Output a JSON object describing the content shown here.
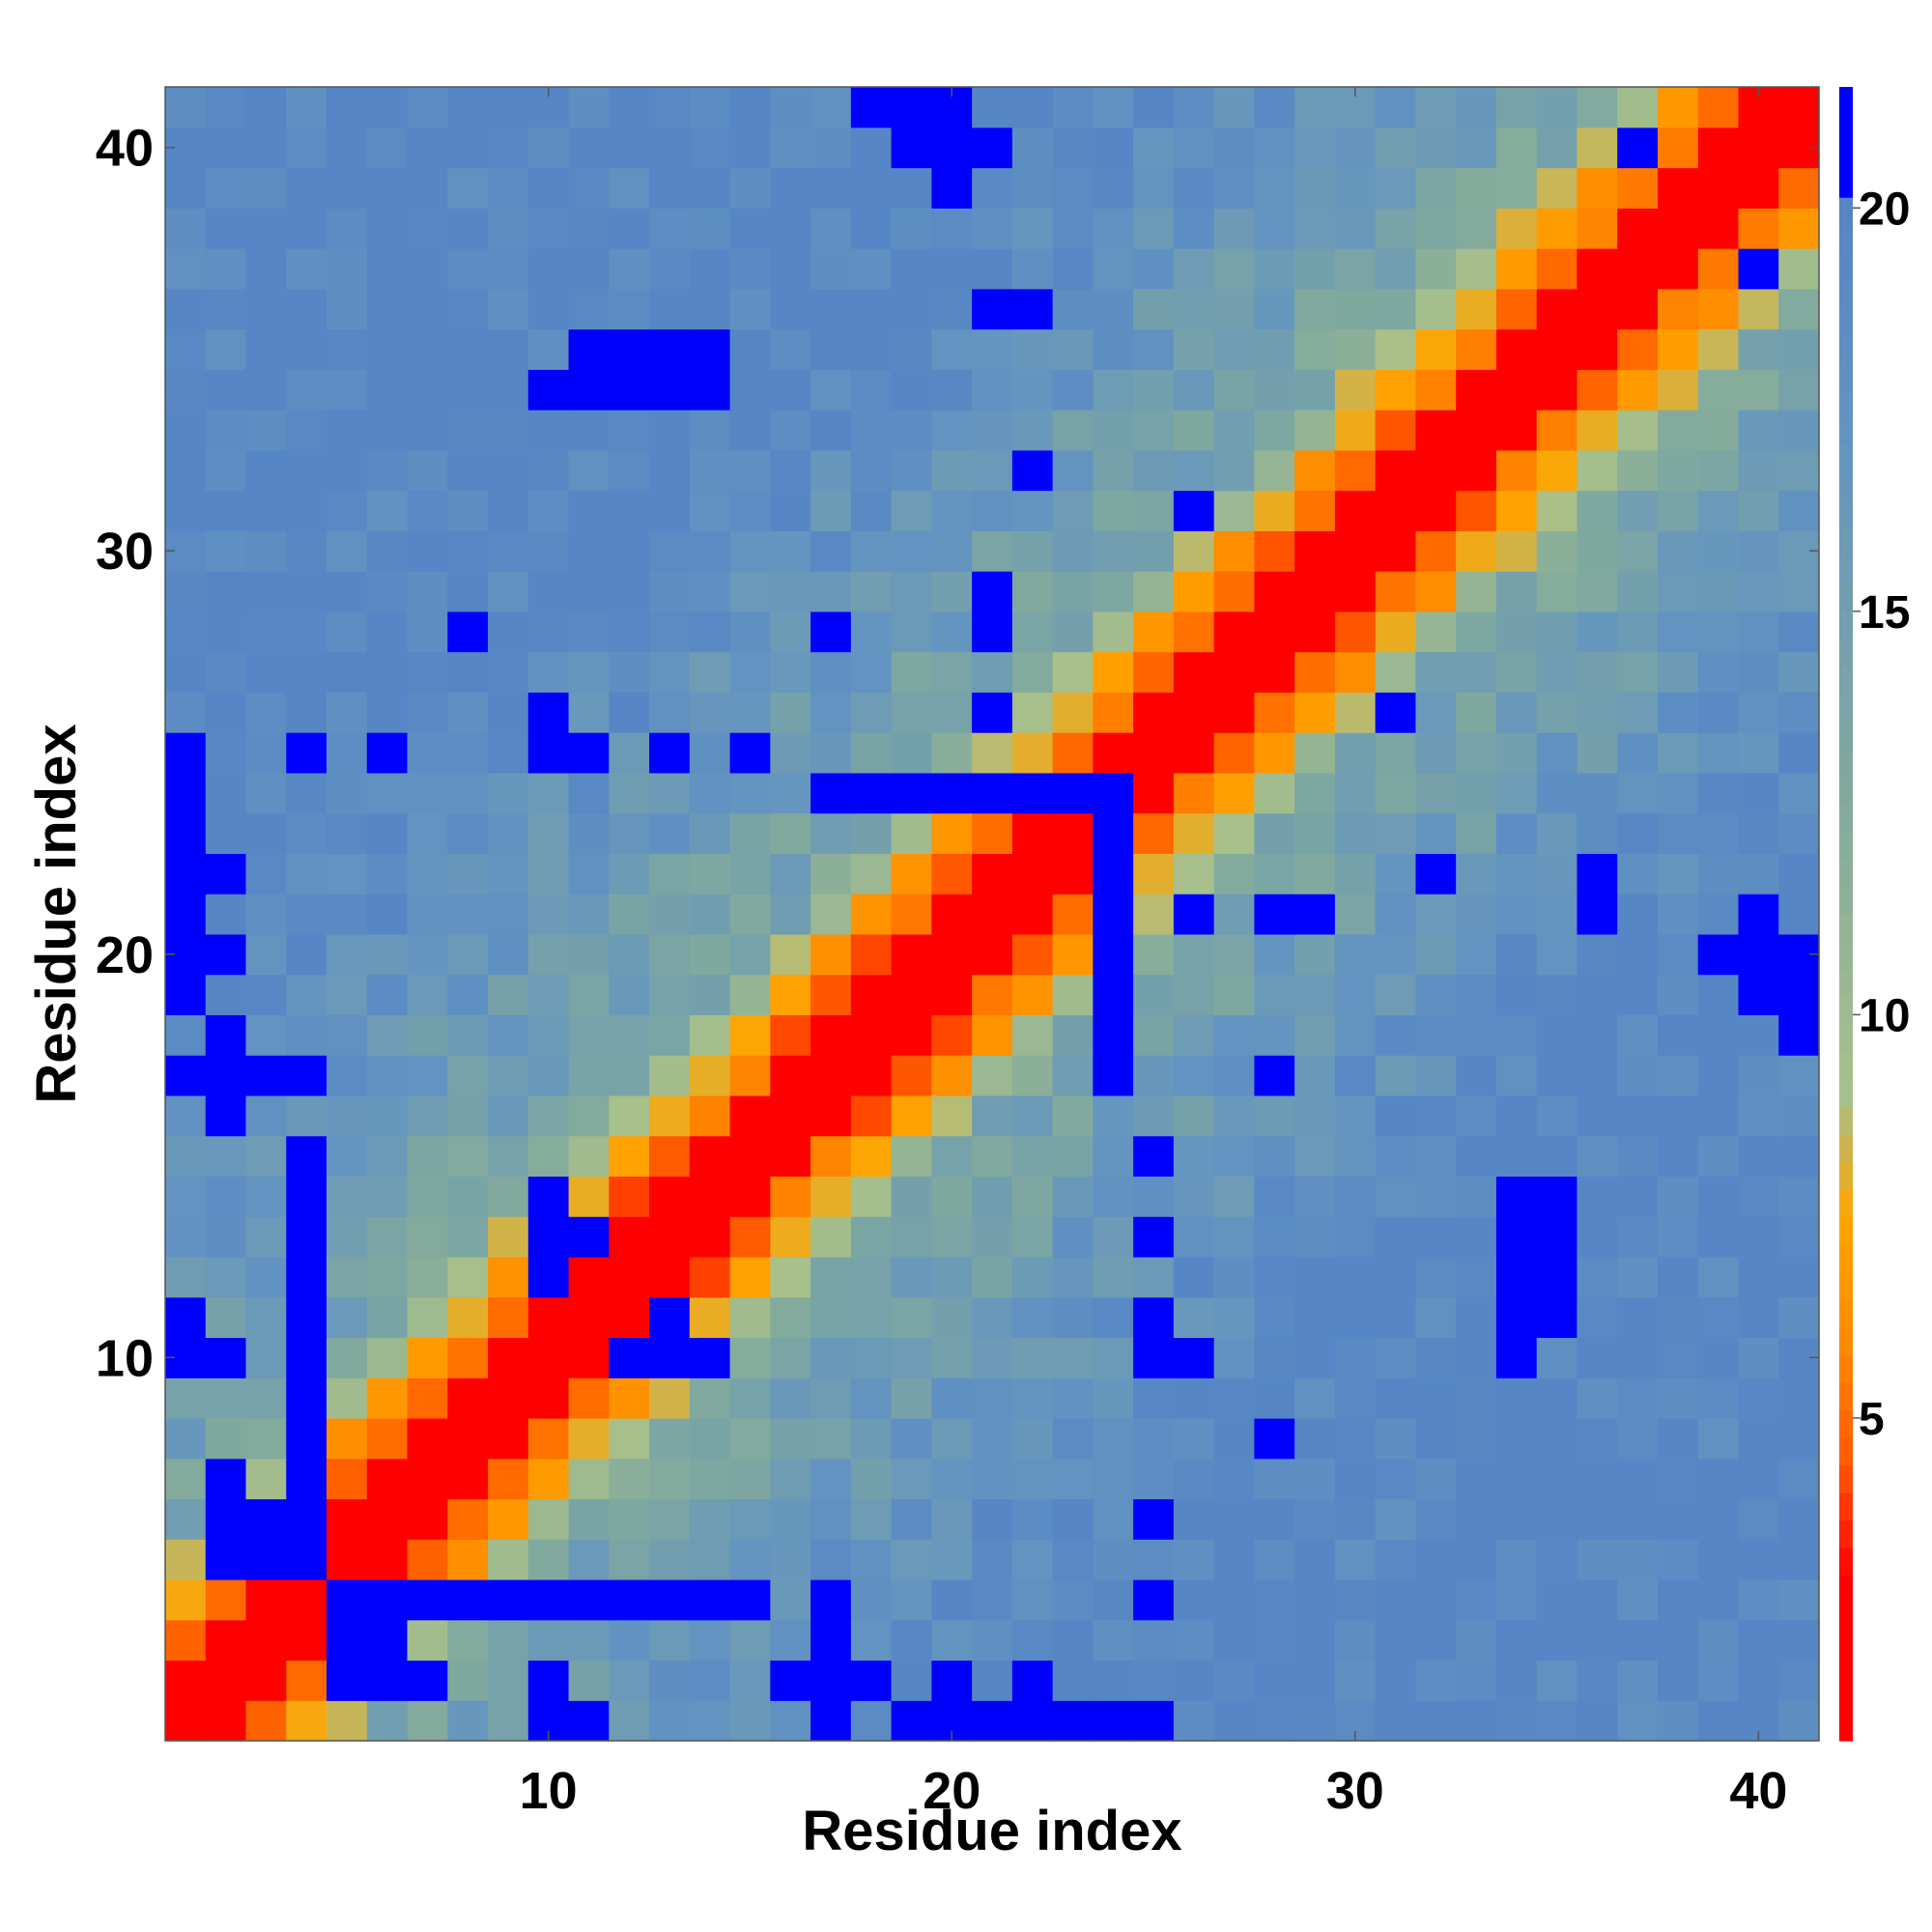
{
  "chart_data": {
    "type": "heatmap",
    "title": "",
    "xlabel": "Residue index",
    "ylabel": "Residue index",
    "n": 41,
    "x_range": [
      1,
      41
    ],
    "y_range": [
      1,
      41
    ],
    "x_ticks": [
      10,
      20,
      30,
      40
    ],
    "y_ticks": [
      10,
      20,
      30,
      40
    ],
    "x_tick_labels": [
      "10",
      "20",
      "30",
      "40"
    ],
    "y_tick_labels": [
      "10",
      "20",
      "30",
      "40"
    ],
    "colorbar": {
      "range": [
        1,
        21.5
      ],
      "ticks": [
        5,
        10,
        15,
        20
      ],
      "tick_labels": [
        "5",
        "10",
        "15",
        "20"
      ],
      "stops": [
        {
          "value": 1.0,
          "color": "#ff0000"
        },
        {
          "value": 3.0,
          "color": "#ff0000"
        },
        {
          "value": 4.5,
          "color": "#ff5a00"
        },
        {
          "value": 6.0,
          "color": "#ff8c00"
        },
        {
          "value": 7.5,
          "color": "#ffa500"
        },
        {
          "value": 9.0,
          "color": "#a8c08a"
        },
        {
          "value": 13.0,
          "color": "#7fa89f"
        },
        {
          "value": 17.0,
          "color": "#6495c0"
        },
        {
          "value": 20.0,
          "color": "#5585c5"
        },
        {
          "value": 20.3,
          "color": "#0000ff"
        },
        {
          "value": 21.5,
          "color": "#0000ff"
        }
      ]
    },
    "matrix_rows_ordered_from": "residue 1 (bottom) to residue 41 (top); columns residue 1 (left) to 41 (right)",
    "anchor_cells": [
      [
        1,
        1,
        1.5
      ],
      [
        10,
        1,
        21
      ],
      [
        11,
        1,
        21
      ],
      [
        19,
        1,
        21
      ],
      [
        20,
        1,
        21
      ],
      [
        21,
        1,
        21
      ],
      [
        22,
        1,
        21
      ],
      [
        23,
        1,
        21
      ],
      [
        24,
        1,
        21
      ],
      [
        25,
        1,
        21
      ],
      [
        2,
        2,
        1.5
      ],
      [
        3,
        3,
        1.5
      ],
      [
        10,
        2,
        21
      ],
      [
        20,
        2,
        21
      ],
      [
        22,
        2,
        21
      ],
      [
        17,
        2,
        21
      ],
      [
        18,
        2,
        21
      ],
      [
        5,
        4,
        21
      ],
      [
        6,
        4,
        21
      ],
      [
        7,
        4,
        21
      ],
      [
        8,
        4,
        21
      ],
      [
        9,
        4,
        21
      ],
      [
        10,
        4,
        21
      ],
      [
        11,
        4,
        21
      ],
      [
        12,
        4,
        21
      ],
      [
        13,
        4,
        21
      ],
      [
        14,
        4,
        21
      ],
      [
        15,
        4,
        21
      ],
      [
        2,
        16,
        21
      ],
      [
        2,
        17,
        21
      ],
      [
        1,
        17,
        21
      ],
      [
        2,
        5,
        21
      ],
      [
        2,
        6,
        21
      ],
      [
        2,
        7,
        21
      ],
      [
        3,
        5,
        21
      ],
      [
        3,
        6,
        21
      ],
      [
        4,
        5,
        21
      ],
      [
        4,
        6,
        21
      ],
      [
        1,
        10,
        21
      ],
      [
        1,
        11,
        21
      ],
      [
        15,
        25,
        21
      ],
      [
        25,
        4,
        21
      ],
      [
        25,
        11,
        21
      ],
      [
        17,
        3,
        21
      ],
      [
        17,
        4,
        21
      ],
      [
        24,
        17,
        21
      ],
      [
        24,
        18,
        21
      ],
      [
        24,
        19,
        21
      ],
      [
        24,
        20,
        21
      ],
      [
        24,
        21,
        21
      ],
      [
        24,
        22,
        21
      ],
      [
        24,
        23,
        21
      ],
      [
        24,
        24,
        21
      ],
      [
        28,
        8,
        21
      ],
      [
        25,
        6,
        21
      ],
      [
        25,
        10,
        21
      ],
      [
        35,
        11,
        21
      ],
      [
        35,
        12,
        21
      ],
      [
        35,
        13,
        21
      ],
      [
        35,
        14,
        21
      ],
      [
        34,
        10,
        21
      ],
      [
        34,
        11,
        21
      ],
      [
        34,
        12,
        21
      ],
      [
        34,
        13,
        21
      ],
      [
        34,
        14,
        21
      ],
      [
        13,
        10,
        21
      ],
      [
        13,
        11,
        21
      ],
      [
        26,
        31,
        21
      ],
      [
        41,
        19,
        21
      ],
      [
        41,
        20,
        21
      ],
      [
        40,
        20,
        21
      ],
      [
        40,
        21,
        21
      ],
      [
        40,
        37,
        21
      ],
      [
        41,
        18,
        21
      ],
      [
        20,
        41,
        21
      ],
      [
        20,
        40,
        21
      ],
      [
        20,
        39,
        21
      ],
      [
        19,
        40,
        21
      ],
      [
        18,
        41,
        21
      ],
      [
        22,
        32,
        21
      ],
      [
        22,
        36,
        21
      ],
      [
        21,
        36,
        21
      ],
      [
        21,
        26,
        21
      ],
      [
        21,
        28,
        21
      ],
      [
        21,
        29,
        21
      ],
      [
        17,
        28,
        21
      ],
      [
        17,
        24,
        21
      ],
      [
        10,
        14,
        21
      ],
      [
        10,
        12,
        21
      ],
      [
        10,
        13,
        21
      ],
      [
        10,
        26,
        21
      ],
      [
        25,
        13,
        21
      ]
    ]
  }
}
